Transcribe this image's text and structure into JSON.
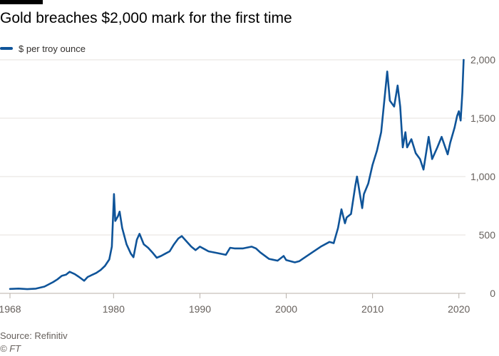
{
  "title": "Gold breaches $2,000 mark for the first time",
  "source": "Source: Refinitiv",
  "credit": "© FT",
  "colors": {
    "series": "#0f5499",
    "grid": "#e6e1dc",
    "axis": "#66605c",
    "text": "#33302e"
  },
  "chart_data": {
    "type": "line",
    "title": "Gold breaches $2,000 mark for the first time",
    "xlabel": "",
    "ylabel": "",
    "xlim": [
      1968,
      2020.6
    ],
    "ylim": [
      0,
      2000
    ],
    "x_ticks": [
      1968,
      1980,
      1990,
      2000,
      2010,
      2020
    ],
    "y_ticks": [
      0,
      500,
      1000,
      1500,
      2000
    ],
    "y_tick_labels": [
      "0",
      "500",
      "1,000",
      "1,500",
      "2,000"
    ],
    "y_axis_position": "right",
    "grid": "horizontal",
    "legend_position": "top-left",
    "series": [
      {
        "name": "$ per troy ounce",
        "color": "#0f5499",
        "points": [
          [
            1968.0,
            38
          ],
          [
            1969.0,
            41
          ],
          [
            1970.0,
            36
          ],
          [
            1971.0,
            40
          ],
          [
            1972.0,
            58
          ],
          [
            1973.0,
            97
          ],
          [
            1973.5,
            120
          ],
          [
            1974.0,
            150
          ],
          [
            1974.5,
            160
          ],
          [
            1974.9,
            185
          ],
          [
            1975.5,
            165
          ],
          [
            1976.0,
            140
          ],
          [
            1976.6,
            108
          ],
          [
            1977.0,
            140
          ],
          [
            1978.0,
            175
          ],
          [
            1978.5,
            200
          ],
          [
            1979.0,
            235
          ],
          [
            1979.5,
            290
          ],
          [
            1979.8,
            400
          ],
          [
            1980.05,
            850
          ],
          [
            1980.2,
            620
          ],
          [
            1980.5,
            660
          ],
          [
            1980.7,
            700
          ],
          [
            1981.0,
            560
          ],
          [
            1981.5,
            420
          ],
          [
            1982.0,
            340
          ],
          [
            1982.3,
            310
          ],
          [
            1982.7,
            460
          ],
          [
            1983.0,
            510
          ],
          [
            1983.5,
            420
          ],
          [
            1984.0,
            390
          ],
          [
            1984.5,
            350
          ],
          [
            1985.0,
            305
          ],
          [
            1985.5,
            320
          ],
          [
            1986.0,
            340
          ],
          [
            1986.5,
            360
          ],
          [
            1987.0,
            420
          ],
          [
            1987.5,
            470
          ],
          [
            1987.9,
            490
          ],
          [
            1988.5,
            440
          ],
          [
            1989.0,
            400
          ],
          [
            1989.5,
            370
          ],
          [
            1990.0,
            400
          ],
          [
            1990.5,
            380
          ],
          [
            1991.0,
            360
          ],
          [
            1992.0,
            345
          ],
          [
            1993.0,
            330
          ],
          [
            1993.5,
            390
          ],
          [
            1994.0,
            385
          ],
          [
            1995.0,
            385
          ],
          [
            1996.0,
            400
          ],
          [
            1996.5,
            385
          ],
          [
            1997.0,
            350
          ],
          [
            1998.0,
            295
          ],
          [
            1999.0,
            280
          ],
          [
            1999.7,
            320
          ],
          [
            2000.0,
            285
          ],
          [
            2001.0,
            265
          ],
          [
            2001.5,
            275
          ],
          [
            2002.0,
            300
          ],
          [
            2003.0,
            350
          ],
          [
            2004.0,
            400
          ],
          [
            2005.0,
            440
          ],
          [
            2005.5,
            430
          ],
          [
            2006.0,
            560
          ],
          [
            2006.4,
            720
          ],
          [
            2006.8,
            600
          ],
          [
            2007.0,
            650
          ],
          [
            2007.5,
            680
          ],
          [
            2008.0,
            920
          ],
          [
            2008.2,
            1000
          ],
          [
            2008.8,
            730
          ],
          [
            2009.0,
            850
          ],
          [
            2009.5,
            940
          ],
          [
            2010.0,
            1100
          ],
          [
            2010.5,
            1220
          ],
          [
            2011.0,
            1380
          ],
          [
            2011.7,
            1900
          ],
          [
            2012.0,
            1650
          ],
          [
            2012.5,
            1600
          ],
          [
            2012.9,
            1780
          ],
          [
            2013.2,
            1600
          ],
          [
            2013.5,
            1250
          ],
          [
            2013.8,
            1380
          ],
          [
            2014.0,
            1250
          ],
          [
            2014.5,
            1320
          ],
          [
            2015.0,
            1200
          ],
          [
            2015.5,
            1150
          ],
          [
            2015.9,
            1060
          ],
          [
            2016.5,
            1340
          ],
          [
            2016.9,
            1150
          ],
          [
            2017.5,
            1250
          ],
          [
            2018.0,
            1340
          ],
          [
            2018.7,
            1190
          ],
          [
            2019.0,
            1290
          ],
          [
            2019.5,
            1420
          ],
          [
            2019.8,
            1520
          ],
          [
            2020.0,
            1560
          ],
          [
            2020.2,
            1480
          ],
          [
            2020.4,
            1720
          ],
          [
            2020.55,
            2000
          ]
        ]
      }
    ]
  }
}
